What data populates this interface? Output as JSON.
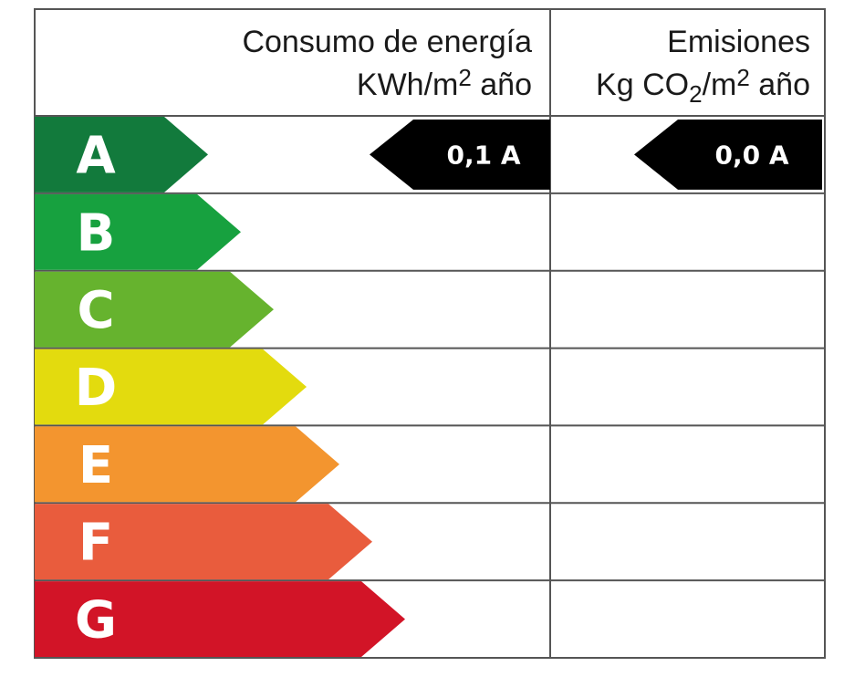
{
  "header": {
    "consumo_line1": "Consumo de energía",
    "consumo_line2_main": "KWh/m",
    "consumo_line2_sup": "2",
    "consumo_line2_end": " año",
    "emisiones_line1": "Emisiones",
    "emisiones_line2_a": "Kg CO",
    "emisiones_line2_sub": "2",
    "emisiones_line2_b": "/m",
    "emisiones_line2_sup": "2",
    "emisiones_line2_end": " año"
  },
  "grades": [
    {
      "letter": "A",
      "color": "#127a3c"
    },
    {
      "letter": "B",
      "color": "#17a13f"
    },
    {
      "letter": "C",
      "color": "#66b32e"
    },
    {
      "letter": "D",
      "color": "#e3db0e"
    },
    {
      "letter": "E",
      "color": "#f3952f"
    },
    {
      "letter": "F",
      "color": "#e95c3d"
    },
    {
      "letter": "G",
      "color": "#d21427"
    }
  ],
  "consumo_rating": {
    "text": "0,1 A",
    "grade": "A"
  },
  "emisiones_rating": {
    "text": "0,0 A",
    "grade": "A"
  }
}
